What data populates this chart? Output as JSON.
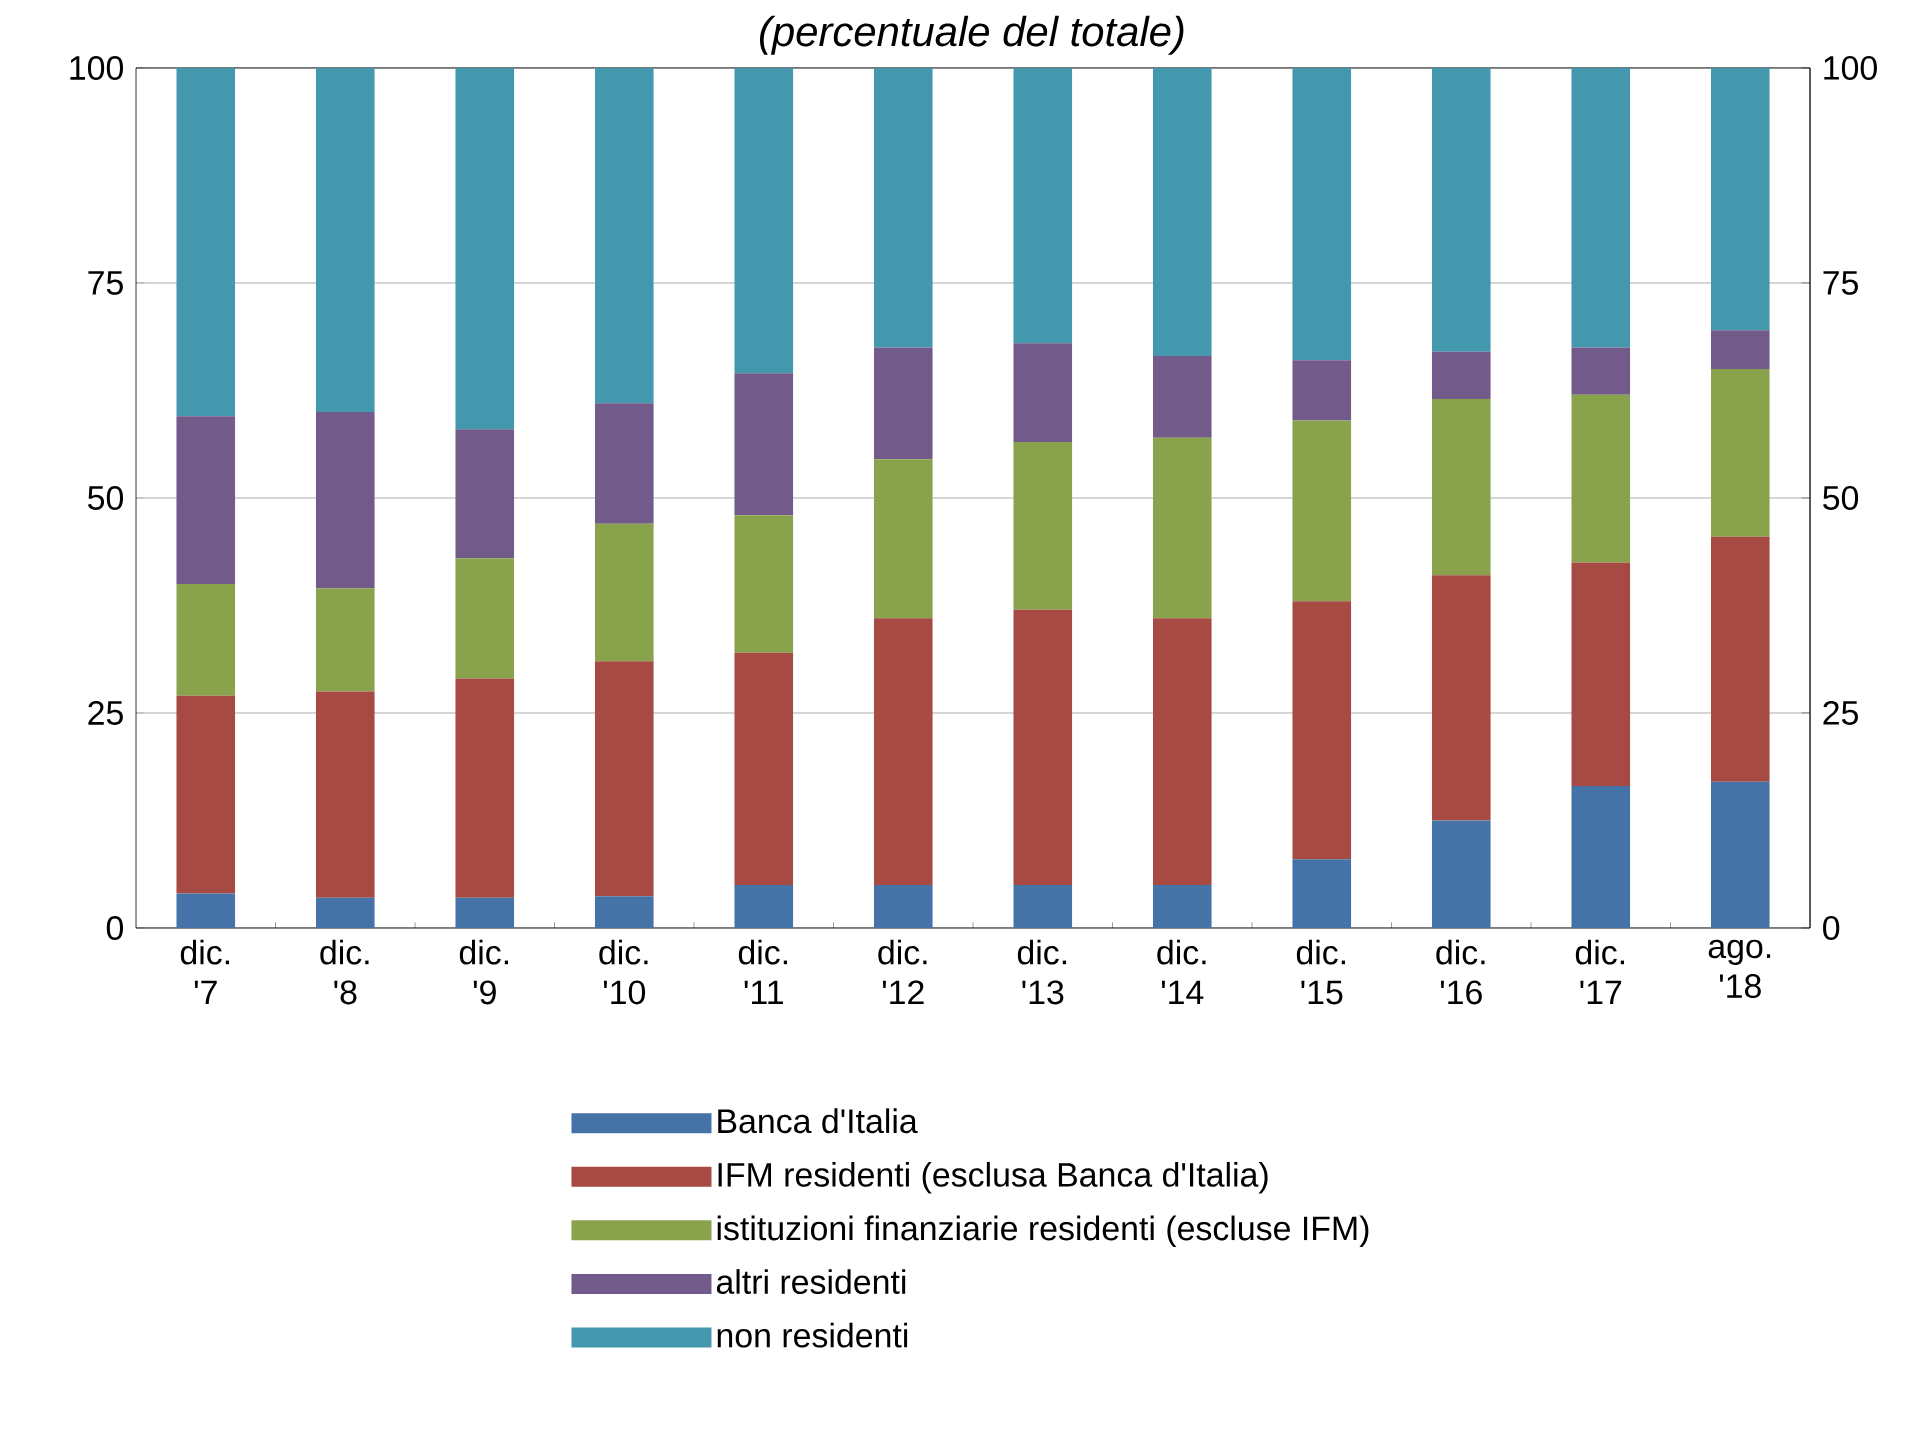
{
  "chart_data": {
    "type": "bar",
    "stacked": true,
    "title": "(percentuale del totale)",
    "categories": [
      "dic. '7",
      "dic. '8",
      "dic. '9",
      "dic. '10",
      "dic. '11",
      "dic. '12",
      "dic. '13",
      "dic. '14",
      "dic. '15",
      "dic. '16",
      "dic. '17",
      "ago. '18"
    ],
    "series": [
      {
        "name": "Banca d'Italia",
        "color": "#4573a7",
        "values": [
          4,
          3.5,
          3.5,
          3.7,
          5,
          5,
          5,
          5,
          8,
          12.5,
          16.5,
          17
        ]
      },
      {
        "name": "IFM residenti (esclusa Banca d'Italia)",
        "color": "#a64a43",
        "values": [
          23,
          24,
          25.5,
          27.3,
          27,
          31,
          32,
          31,
          30,
          28.5,
          26,
          28.5
        ]
      },
      {
        "name": "istituzioni finanziarie residenti (escluse IFM)",
        "color": "#89a34c",
        "values": [
          13,
          12,
          14,
          16,
          16,
          18.5,
          19.5,
          21,
          21,
          20.5,
          19.5,
          19.5
        ]
      },
      {
        "name": "altri residenti",
        "color": "#725a8a",
        "values": [
          19.5,
          20.5,
          15,
          14,
          16.5,
          13,
          11.5,
          9.5,
          7,
          5.5,
          5.5,
          4.5
        ]
      },
      {
        "name": "non residenti",
        "color": "#4398ae",
        "values": [
          40.5,
          40,
          42,
          39,
          35.5,
          32.5,
          32,
          33.5,
          34,
          33,
          32.5,
          30.5
        ]
      }
    ],
    "ylim": [
      0,
      100
    ],
    "yticks": [
      0,
      25,
      50,
      75,
      100
    ],
    "y2lim": [
      0,
      100
    ],
    "y2ticks": [
      0,
      25,
      50,
      75,
      100
    ],
    "grid": "y",
    "legend": "bottom"
  }
}
